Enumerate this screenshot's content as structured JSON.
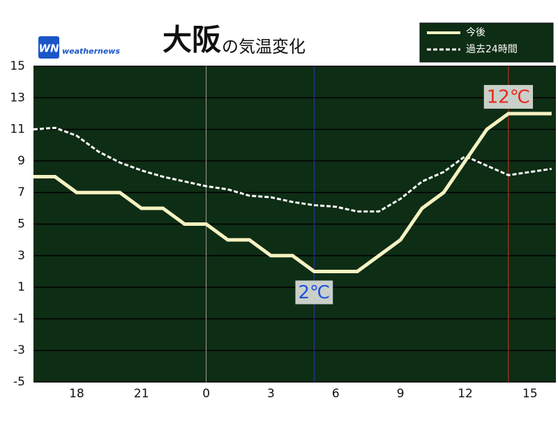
{
  "brand": {
    "mark": "WN",
    "text": "weathernews"
  },
  "chart_data": {
    "type": "line",
    "title": "大阪",
    "subtitle": "の気温変化",
    "x": [
      16,
      17,
      18,
      19,
      20,
      21,
      22,
      23,
      24,
      25,
      26,
      27,
      28,
      29,
      30,
      31,
      32,
      33,
      34,
      35,
      36,
      37,
      38,
      39,
      40
    ],
    "series": [
      {
        "name": "今後",
        "color": "#f6f2c2",
        "dashed": false,
        "values": [
          8,
          8,
          7,
          7,
          7,
          6,
          6,
          5,
          5,
          4,
          4,
          3,
          3,
          2,
          2,
          2,
          3,
          4,
          6,
          7,
          9,
          11,
          12,
          12,
          12
        ]
      },
      {
        "name": "過去24時間",
        "color": "#ffffff",
        "dashed": true,
        "values": [
          11,
          11.1,
          10.6,
          9.6,
          8.9,
          8.4,
          8.0,
          7.7,
          7.4,
          7.2,
          6.8,
          6.7,
          6.4,
          6.2,
          6.1,
          5.8,
          5.8,
          6.6,
          7.7,
          8.3,
          9.3,
          8.7,
          8.1,
          8.3,
          8.5
        ]
      }
    ],
    "xlim": [
      16,
      40.2
    ],
    "xticks": [
      18,
      21,
      {
        "value": 24,
        "label": "0"
      },
      {
        "value": 27,
        "label": "3"
      },
      {
        "value": 30,
        "label": "6"
      },
      {
        "value": 33,
        "label": "9"
      },
      {
        "value": 36,
        "label": "12"
      },
      {
        "value": 39,
        "label": "15"
      }
    ],
    "ylim": [
      -5,
      15
    ],
    "yticks": [
      15,
      13,
      11,
      9,
      7,
      5,
      3,
      1,
      -1,
      -3,
      -5
    ],
    "vlines": [
      {
        "x": 24,
        "color": "#a0a0a0"
      }
    ],
    "annotations": [
      {
        "label": "2℃",
        "x": 29,
        "value": 2,
        "color": "#1f4fe0",
        "line_color": "#1f3fb0",
        "place": "below"
      },
      {
        "label": "12℃",
        "x": 38,
        "value": 12,
        "color": "#e8281c",
        "line_color": "#d8301c",
        "place": "above"
      }
    ],
    "grid": true,
    "background": "#0e2d15"
  }
}
